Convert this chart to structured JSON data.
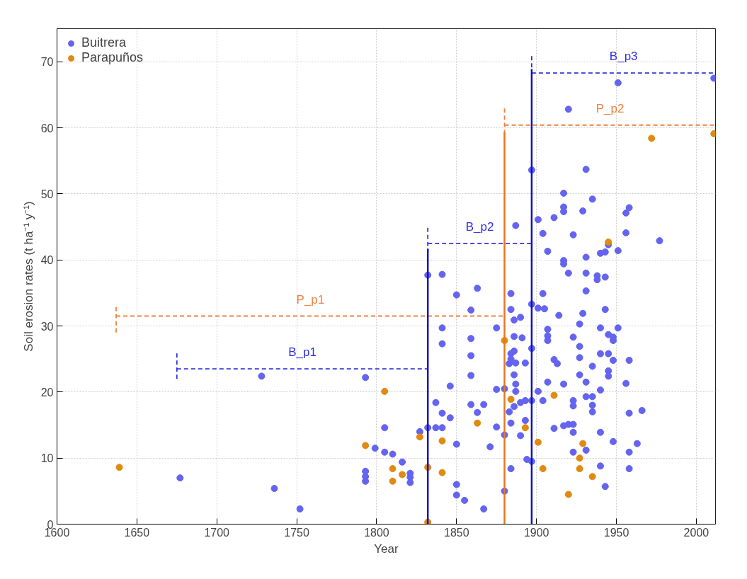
{
  "chart_data": {
    "type": "scatter",
    "xlabel": "Year",
    "ylabel": "Soil erosion rates (t ha⁻¹ y⁻¹)",
    "xlim": [
      1600,
      2012
    ],
    "ylim": [
      0,
      75
    ],
    "xticks": [
      1600,
      1650,
      1700,
      1750,
      1800,
      1850,
      1900,
      1950,
      2000
    ],
    "yticks": [
      0,
      10,
      20,
      30,
      40,
      50,
      60,
      70
    ],
    "grid": true,
    "legend": "top left",
    "series": [
      {
        "name": "Buitrera",
        "color": "#6464f0",
        "marker": "circle",
        "x": [
          1677,
          1736,
          1752,
          1728,
          1793,
          1793,
          1793,
          1793,
          1805,
          1799,
          1805,
          1810,
          1816,
          1821,
          1821,
          1821,
          1827,
          1832,
          1837,
          1841,
          1832,
          1841,
          1850,
          1863,
          1884,
          1904,
          1897,
          1901,
          1911,
          1904,
          1907,
          1887,
          1859,
          1884,
          1897,
          1901,
          1905,
          1886,
          1890,
          1914,
          1841,
          1875,
          1907,
          1907,
          1907,
          1841,
          1859,
          1886,
          1891,
          1897,
          1859,
          1884,
          1886,
          1884,
          1883,
          1887,
          1893,
          1911,
          1913,
          1859,
          1886,
          1887,
          1887,
          1907,
          1846,
          1875,
          1880,
          1901,
          1837,
          1859,
          1867,
          1863,
          1841,
          1846,
          1883,
          1886,
          1890,
          1893,
          1897,
          1904,
          1875,
          1884,
          1893,
          1880,
          1890,
          1911,
          1850,
          1871,
          1894,
          1897,
          1884,
          1850,
          1850,
          1855,
          1867,
          1880,
          1931,
          1943,
          1929,
          1927,
          1940,
          1951,
          1923,
          1945,
          1948,
          1948,
          1927,
          1927,
          1940,
          1945,
          1948,
          1958,
          1935,
          1927,
          1945,
          1945,
          1931,
          1917,
          1956,
          1940,
          1931,
          1935,
          1923,
          1923,
          1935,
          1935,
          1958,
          1966,
          1917,
          1920,
          1923,
          1923,
          1940,
          1948,
          1963,
          1923,
          1931,
          1958,
          1940,
          1958,
          1943,
          1951,
          1920,
          1931,
          1917,
          1935,
          1917,
          1917,
          1929,
          1958,
          1956,
          1923,
          1956,
          1977,
          1945,
          1940,
          1943,
          1951,
          1917,
          1917,
          1931,
          1920,
          1931,
          1938,
          1938,
          1943,
          2011
        ],
        "values": [
          7.0,
          5.4,
          2.3,
          22.4,
          22.2,
          8.0,
          7.2,
          6.5,
          14.6,
          11.5,
          10.9,
          10.6,
          9.4,
          7.7,
          7.1,
          6.3,
          14.0,
          14.6,
          14.6,
          14.6,
          37.7,
          37.8,
          34.7,
          35.7,
          34.9,
          34.9,
          53.6,
          46.1,
          46.4,
          44.0,
          41.3,
          45.2,
          32.4,
          32.5,
          33.3,
          32.7,
          32.6,
          30.9,
          31.3,
          31.6,
          29.7,
          29.7,
          29.5,
          28.5,
          27.8,
          27.3,
          28.1,
          28.4,
          28.2,
          26.6,
          25.5,
          25.8,
          26.2,
          25.0,
          24.3,
          24.4,
          24.4,
          24.9,
          24.3,
          22.5,
          22.6,
          21.2,
          20.1,
          21.5,
          20.9,
          20.4,
          20.5,
          20.1,
          18.4,
          18.1,
          18.1,
          16.9,
          16.8,
          16.1,
          17.0,
          17.8,
          18.4,
          18.7,
          18.7,
          18.7,
          14.7,
          15.3,
          15.7,
          13.5,
          13.4,
          14.5,
          12.1,
          11.7,
          9.8,
          9.5,
          8.4,
          6.0,
          4.4,
          3.6,
          2.3,
          5.0,
          35.3,
          32.5,
          31.9,
          30.3,
          29.7,
          29.7,
          28.3,
          28.7,
          28.3,
          27.8,
          26.9,
          25.2,
          25.8,
          25.8,
          24.8,
          24.8,
          23.9,
          22.6,
          23.2,
          22.4,
          21.5,
          21.2,
          21.3,
          20.3,
          19.3,
          19.3,
          18.7,
          17.9,
          18.0,
          17.0,
          16.8,
          17.2,
          14.9,
          15.1,
          15.1,
          13.9,
          13.9,
          12.5,
          12.2,
          10.9,
          11.2,
          10.9,
          8.8,
          8.4,
          5.7,
          66.8,
          62.8,
          53.7,
          50.1,
          49.2,
          48.0,
          47.3,
          47.4,
          47.9,
          47.1,
          43.8,
          44.1,
          42.9,
          42.3,
          41.0,
          41.2,
          41.4,
          39.9,
          39.4,
          40.4,
          38.0,
          38.0,
          37.6,
          37.0,
          37.4,
          67.5
        ]
      },
      {
        "name": "Parapuños",
        "color": "#e08a10",
        "marker": "circle",
        "x": [
          1639,
          1805,
          1793,
          1880,
          1884,
          1911,
          1863,
          1893,
          1827,
          1841,
          1901,
          1810,
          1816,
          1810,
          1832,
          1841,
          1904,
          1832,
          1929,
          1927,
          1927,
          1935,
          1920,
          1972,
          1945,
          2011
        ],
        "values": [
          8.6,
          20.1,
          11.9,
          27.8,
          18.9,
          19.5,
          15.3,
          14.6,
          13.2,
          12.6,
          12.4,
          8.4,
          7.5,
          6.5,
          8.6,
          7.8,
          8.4,
          0.3,
          12.2,
          10.0,
          8.4,
          7.2,
          4.5,
          58.4,
          42.7,
          59.1
        ]
      },
      {
        "type": "line",
        "name": "B_p1",
        "color": "#3030e0",
        "line_style": "dashed",
        "x": [
          1675,
          1675,
          null,
          1675,
          1832
        ],
        "values": [
          22,
          26,
          null,
          23.5,
          23.5
        ]
      },
      {
        "type": "line",
        "name": "P_p1",
        "color": "#f08040",
        "line_style": "dashed",
        "x": [
          1637,
          1637,
          null,
          1637,
          1880
        ],
        "values": [
          29,
          33,
          null,
          31.5,
          31.5
        ]
      },
      {
        "type": "line",
        "name": "B_p2",
        "color": "#3030e0",
        "line_style": "dashed",
        "x": [
          1832,
          1832,
          null,
          1832,
          1897
        ],
        "values": [
          41,
          45,
          null,
          42.5,
          42.5
        ]
      },
      {
        "type": "line",
        "name": "P_p2",
        "color": "#f08040",
        "line_style": "dashed",
        "x": [
          1880,
          1880,
          null,
          1880,
          2012
        ],
        "values": [
          58,
          63,
          null,
          60.4,
          60.4
        ]
      },
      {
        "type": "line",
        "name": "B_p3",
        "color": "#3030e0",
        "line_style": "dashed",
        "x": [
          1897,
          1897,
          null,
          1897,
          2012
        ],
        "values": [
          67,
          71,
          null,
          68.3,
          68.3
        ]
      },
      {
        "type": "line",
        "color": "#1010c8",
        "line_style": "solid",
        "x": [
          1832,
          1832
        ],
        "values": [
          0,
          41.7
        ]
      },
      {
        "type": "line",
        "color": "#e87820",
        "line_style": "solid",
        "x": [
          1880,
          1880
        ],
        "values": [
          0,
          59.3
        ]
      },
      {
        "type": "line",
        "color": "#1010c8",
        "line_style": "solid",
        "x": [
          1897,
          1897
        ],
        "values": [
          0,
          68.9
        ]
      }
    ]
  }
}
